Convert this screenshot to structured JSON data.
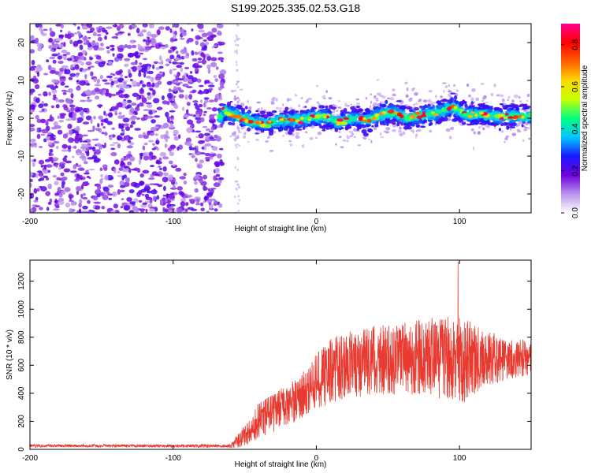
{
  "title": "S199.2025.335.02.53.G18",
  "chart_data": [
    {
      "type": "heatmap",
      "title": "S199.2025.335.02.53.G18",
      "xlabel": "Height of straight line (km)",
      "ylabel": "Frequency (Hz)",
      "xlim": [
        -200,
        150
      ],
      "ylim": [
        -25,
        25
      ],
      "xticks": [
        -200,
        -100,
        0,
        100
      ],
      "yticks": [
        -20,
        -10,
        0,
        10,
        20
      ],
      "colorbar": {
        "label": "Normalized spectral amplitude",
        "range": [
          0.0,
          0.9
        ],
        "ticks": [
          0.0,
          0.2,
          0.4,
          0.6,
          0.8
        ],
        "colormap": [
          "#ffffff",
          "#ba92ec",
          "#7000e0",
          "#1a1aff",
          "#00c8ff",
          "#00ff80",
          "#c8ff00",
          "#ffd700",
          "#ff6000",
          "#ff0000",
          "#ff0090"
        ]
      },
      "noise_region_x": [
        -200,
        -65
      ],
      "signal_track": [
        {
          "x": -65,
          "f": 2.0
        },
        {
          "x": -55,
          "f": 0.5
        },
        {
          "x": -45,
          "f": -1.0
        },
        {
          "x": -35,
          "f": -1.5
        },
        {
          "x": -25,
          "f": -0.5
        },
        {
          "x": -15,
          "f": -0.5
        },
        {
          "x": -5,
          "f": 0.0
        },
        {
          "x": 5,
          "f": 0.5
        },
        {
          "x": 15,
          "f": -1.0
        },
        {
          "x": 25,
          "f": 0.0
        },
        {
          "x": 35,
          "f": -0.5
        },
        {
          "x": 45,
          "f": 1.0
        },
        {
          "x": 55,
          "f": 1.5
        },
        {
          "x": 65,
          "f": 0.0
        },
        {
          "x": 75,
          "f": 1.0
        },
        {
          "x": 85,
          "f": 1.5
        },
        {
          "x": 95,
          "f": 3.0
        },
        {
          "x": 105,
          "f": 1.0
        },
        {
          "x": 115,
          "f": 1.0
        },
        {
          "x": 125,
          "f": 0.5
        },
        {
          "x": 135,
          "f": 0.5
        },
        {
          "x": 150,
          "f": 0.5
        }
      ]
    },
    {
      "type": "line",
      "xlabel": "Height of straight line (km)",
      "ylabel": "SNR (10 * v/v)",
      "xlim": [
        -200,
        150
      ],
      "ylim": [
        0,
        1350
      ],
      "xticks": [
        -200,
        -100,
        0,
        100
      ],
      "yticks": [
        0,
        200,
        400,
        600,
        800,
        1000,
        1200
      ],
      "color": "#e83a30",
      "envelope": [
        {
          "x": -200,
          "mean": 25,
          "spread": 10
        },
        {
          "x": -100,
          "mean": 25,
          "spread": 10
        },
        {
          "x": -60,
          "mean": 25,
          "spread": 12
        },
        {
          "x": -55,
          "mean": 60,
          "spread": 50
        },
        {
          "x": -45,
          "mean": 140,
          "spread": 100
        },
        {
          "x": -40,
          "mean": 200,
          "spread": 140
        },
        {
          "x": -30,
          "mean": 260,
          "spread": 140
        },
        {
          "x": -20,
          "mean": 320,
          "spread": 150
        },
        {
          "x": -10,
          "mean": 380,
          "spread": 160
        },
        {
          "x": 0,
          "mean": 480,
          "spread": 200
        },
        {
          "x": 10,
          "mean": 560,
          "spread": 230
        },
        {
          "x": 20,
          "mean": 600,
          "spread": 240
        },
        {
          "x": 40,
          "mean": 640,
          "spread": 250
        },
        {
          "x": 60,
          "mean": 650,
          "spread": 260
        },
        {
          "x": 80,
          "mean": 660,
          "spread": 280
        },
        {
          "x": 100,
          "mean": 630,
          "spread": 320
        },
        {
          "x": 110,
          "mean": 640,
          "spread": 260
        },
        {
          "x": 120,
          "mean": 650,
          "spread": 200
        },
        {
          "x": 135,
          "mean": 640,
          "spread": 140
        },
        {
          "x": 150,
          "mean": 660,
          "spread": 130
        }
      ],
      "peak": {
        "x": 99,
        "y": 1340
      }
    }
  ]
}
